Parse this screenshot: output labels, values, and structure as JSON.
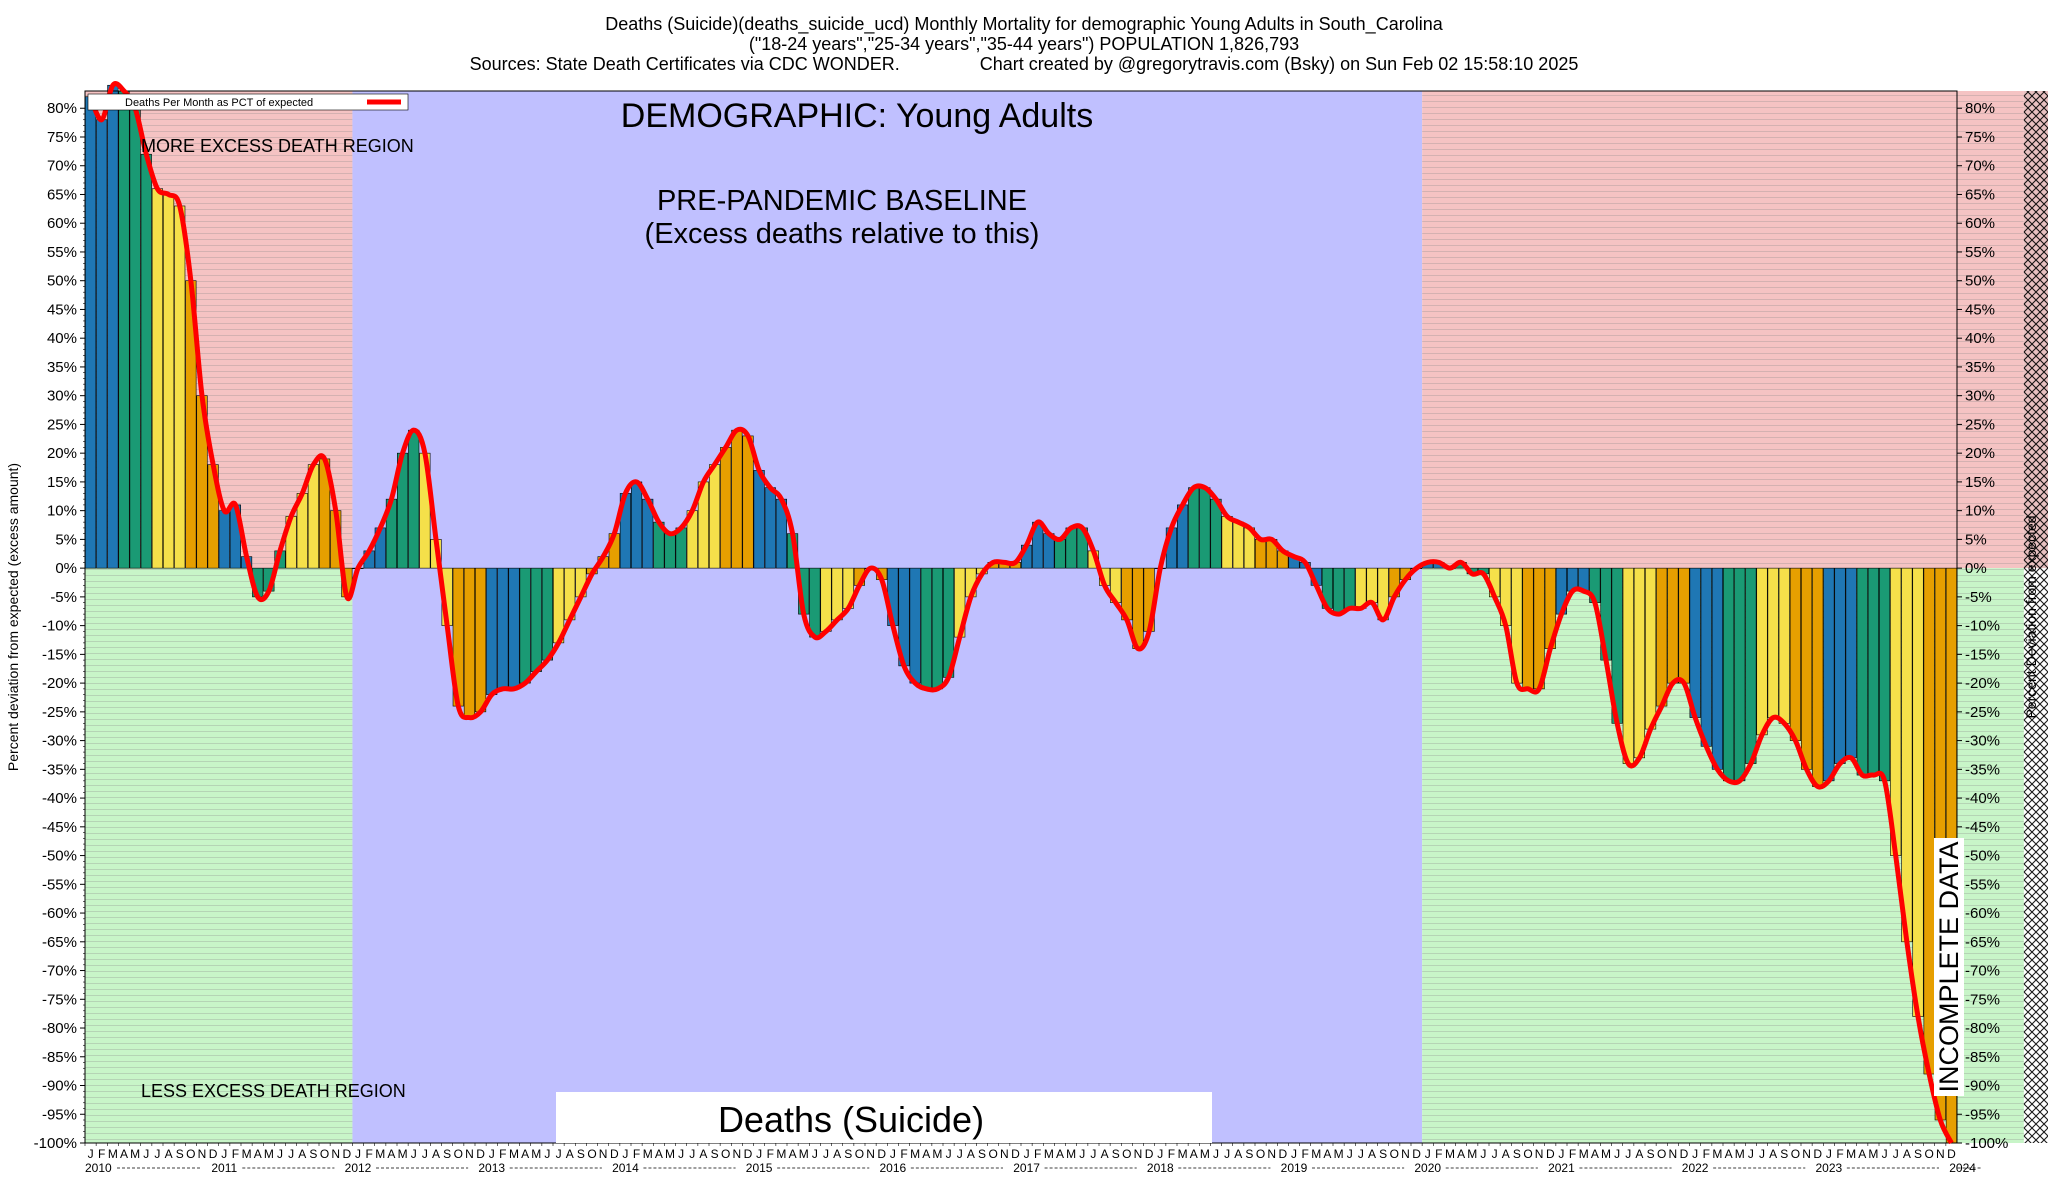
{
  "header": {
    "line1": "Deaths (Suicide)(deaths_suicide_ucd) Monthly Mortality for demographic Young Adults in South_Carolina",
    "line2": "(\"18-24 years\",\"25-34 years\",\"35-44 years\") POPULATION 1,826,793",
    "line3": "Sources: State Death Certificates via CDC WONDER.                Chart created by @gregorytravis.com (Bsky) on Sun Feb 02 15:58:10 2025"
  },
  "chart_data": {
    "type": "bar",
    "title": "Deaths (Suicide)(deaths_suicide_ucd) Monthly Mortality for demographic Young Adults in South_Carolina",
    "ylabel_left": "Percent deviation from expected (excess amount)",
    "ylabel_right": "Percent Deviation from expected",
    "ylim": [
      -100,
      83
    ],
    "yticks": [
      80,
      75,
      70,
      65,
      60,
      55,
      50,
      45,
      40,
      35,
      30,
      25,
      20,
      15,
      10,
      5,
      0,
      -5,
      -10,
      -15,
      -20,
      -25,
      -30,
      -35,
      -40,
      -45,
      -50,
      -55,
      -60,
      -65,
      -70,
      -75,
      -80,
      -85,
      -90,
      -95,
      -100
    ],
    "ytick_suffix": "%",
    "month_letters": [
      "J",
      "F",
      "M",
      "A",
      "M",
      "J",
      "J",
      "A",
      "S",
      "O",
      "N",
      "D"
    ],
    "years": [
      "2010",
      "2011",
      "2012",
      "2013",
      "2014",
      "2015",
      "2016",
      "2017",
      "2018",
      "2019",
      "2020",
      "2021",
      "2022",
      "2023",
      "2024"
    ],
    "start": "2010-01",
    "legend": {
      "label": "Deaths Per Month as PCT of expected",
      "position": "top-left",
      "color": "#ff0000"
    },
    "bar_colors": [
      "#1f77b4",
      "#1a9a74",
      "#f5e04a",
      "#e69f00"
    ],
    "regions": [
      {
        "from": "2010-01",
        "to": "2011-12",
        "upper": "#f5c3c3",
        "lower": "#c8f5c8"
      },
      {
        "from": "2012-01",
        "to": "2019-12",
        "color": "#c0c0ff"
      },
      {
        "from": "2020-01",
        "to": "2024-06",
        "upper": "#f5c3c3",
        "lower": "#c8f5c8"
      },
      {
        "from": "2024-07",
        "to": "2024-12",
        "hatched": true
      }
    ],
    "annotations": {
      "demographic": "DEMOGRAPHIC: Young Adults",
      "baseline_1": "PRE-PANDEMIC BASELINE",
      "baseline_2": "(Excess deaths relative to this)",
      "more_excess": "MORE EXCESS DEATH REGION",
      "less_excess": "LESS EXCESS DEATH REGION",
      "cause_box": "Deaths (Suicide)",
      "incomplete": "INCOMPLETE DATA"
    },
    "series": [
      {
        "name": "Deaths Per Month as PCT of expected",
        "values": [
          82,
          78,
          84,
          83,
          80,
          72,
          66,
          65,
          63,
          50,
          30,
          18,
          10,
          11,
          2,
          -5,
          -4,
          3,
          9,
          13,
          18,
          19,
          10,
          -5,
          0,
          3,
          7,
          12,
          20,
          24,
          20,
          5,
          -10,
          -24,
          -26,
          -25,
          -22,
          -21,
          -21,
          -20,
          -18,
          -16,
          -13,
          -9,
          -5,
          -1,
          2,
          6,
          13,
          15,
          12,
          8,
          6,
          7,
          10,
          15,
          18,
          21,
          24,
          23,
          17,
          14,
          12,
          6,
          -8,
          -12,
          -11,
          -9,
          -7,
          -3,
          0,
          -2,
          -10,
          -17,
          -20,
          -21,
          -21,
          -19,
          -12,
          -5,
          -1,
          1,
          1,
          1,
          4,
          8,
          6,
          5,
          7,
          7,
          3,
          -3,
          -6,
          -9,
          -14,
          -11,
          0,
          7,
          11,
          14,
          14,
          12,
          9,
          8,
          7,
          5,
          5,
          3,
          2,
          1,
          -3,
          -7,
          -8,
          -7,
          -7,
          -6,
          -9,
          -5,
          -2,
          0,
          1,
          1,
          0,
          1,
          -1,
          -1,
          -5,
          -10,
          -20,
          -21,
          -21,
          -14,
          -8,
          -4,
          -4,
          -6,
          -16,
          -27,
          -34,
          -33,
          -28,
          -24,
          -20,
          -20,
          -26,
          -31,
          -35,
          -37,
          -37,
          -34,
          -29,
          -26,
          -27,
          -30,
          -35,
          -38,
          -37,
          -34,
          -33,
          -36,
          -36,
          -37,
          -50,
          -65,
          -78,
          -88,
          -96,
          -100
        ]
      }
    ]
  }
}
